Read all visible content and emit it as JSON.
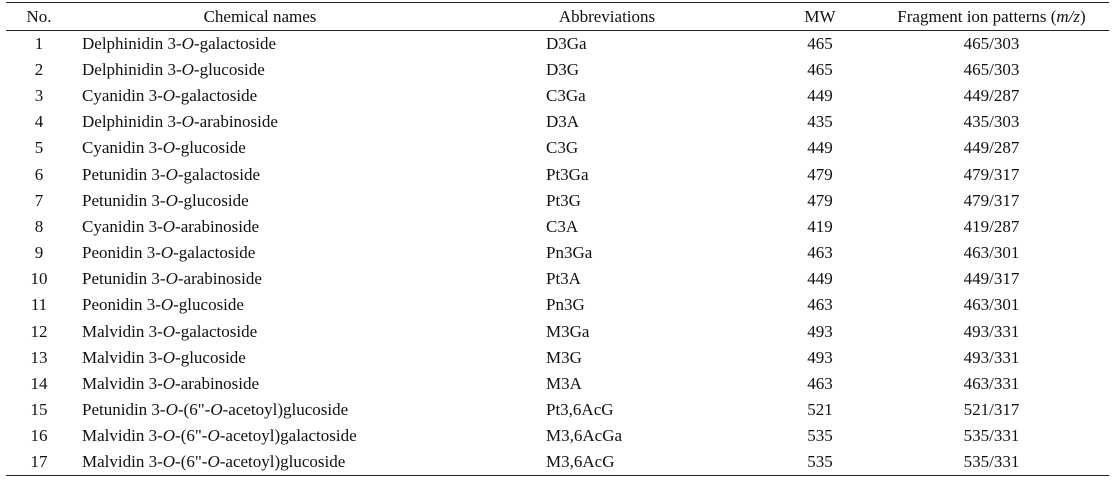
{
  "headers": {
    "no": "No.",
    "name": "Chemical names",
    "abbr": "Abbreviations",
    "mw": "MW",
    "frag_prefix": "Fragment ion patterns (",
    "frag_italic": "m/z",
    "frag_suffix": ")"
  },
  "rows": [
    {
      "no": "1",
      "pre": "Delphinidin 3-",
      "o": "O",
      "post": "-galactoside",
      "abbr": "D3Ga",
      "mw": "465",
      "frag": "465/303"
    },
    {
      "no": "2",
      "pre": "Delphinidin 3-",
      "o": "O",
      "post": "-glucoside",
      "abbr": "D3G",
      "mw": "465",
      "frag": "465/303"
    },
    {
      "no": "3",
      "pre": "Cyanidin 3-",
      "o": "O",
      "post": "-galactoside",
      "abbr": "C3Ga",
      "mw": "449",
      "frag": "449/287"
    },
    {
      "no": "4",
      "pre": "Delphinidin 3-",
      "o": "O",
      "post": "-arabinoside",
      "abbr": "D3A",
      "mw": "435",
      "frag": "435/303"
    },
    {
      "no": "5",
      "pre": "Cyanidin 3-",
      "o": "O",
      "post": "-glucoside",
      "abbr": "C3G",
      "mw": "449",
      "frag": "449/287"
    },
    {
      "no": "6",
      "pre": "Petunidin 3-",
      "o": "O",
      "post": "-galactoside",
      "abbr": "Pt3Ga",
      "mw": "479",
      "frag": "479/317"
    },
    {
      "no": "7",
      "pre": "Petunidin 3-",
      "o": "O",
      "post": "-glucoside",
      "abbr": "Pt3G",
      "mw": "479",
      "frag": "479/317"
    },
    {
      "no": "8",
      "pre": "Cyanidin 3-",
      "o": "O",
      "post": "-arabinoside",
      "abbr": "C3A",
      "mw": "419",
      "frag": "419/287"
    },
    {
      "no": "9",
      "pre": "Peonidin 3-",
      "o": "O",
      "post": "-galactoside",
      "abbr": "Pn3Ga",
      "mw": "463",
      "frag": "463/301"
    },
    {
      "no": "10",
      "pre": "Petunidin 3-",
      "o": "O",
      "post": "-arabinoside",
      "abbr": "Pt3A",
      "mw": "449",
      "frag": "449/317"
    },
    {
      "no": "11",
      "pre": "Peonidin 3-",
      "o": "O",
      "post": "-glucoside",
      "abbr": "Pn3G",
      "mw": "463",
      "frag": "463/301"
    },
    {
      "no": "12",
      "pre": "Malvidin 3-",
      "o": "O",
      "post": "-galactoside",
      "abbr": "M3Ga",
      "mw": "493",
      "frag": "493/331"
    },
    {
      "no": "13",
      "pre": "Malvidin 3-",
      "o": "O",
      "post": "-glucoside",
      "abbr": "M3G",
      "mw": "493",
      "frag": "493/331"
    },
    {
      "no": "14",
      "pre": "Malvidin 3-",
      "o": "O",
      "post": "-arabinoside",
      "abbr": "M3A",
      "mw": "463",
      "frag": "463/331"
    },
    {
      "no": "15",
      "pre": "Petunidin 3-",
      "o": "O",
      "post": "-(6\"-",
      "o2": "O",
      "post2": "-acetoyl)glucoside",
      "abbr": "Pt3,6AcG",
      "mw": "521",
      "frag": "521/317"
    },
    {
      "no": "16",
      "pre": "Malvidin 3-",
      "o": "O",
      "post": "-(6\"-",
      "o2": "O",
      "post2": "-acetoyl)galactoside",
      "abbr": "M3,6AcGa",
      "mw": "535",
      "frag": "535/331"
    },
    {
      "no": "17",
      "pre": "Malvidin 3-",
      "o": "O",
      "post": "-(6\"-",
      "o2": "O",
      "post2": "-acetoyl)glucoside",
      "abbr": "M3,6AcG",
      "mw": "535",
      "frag": "535/331"
    }
  ]
}
